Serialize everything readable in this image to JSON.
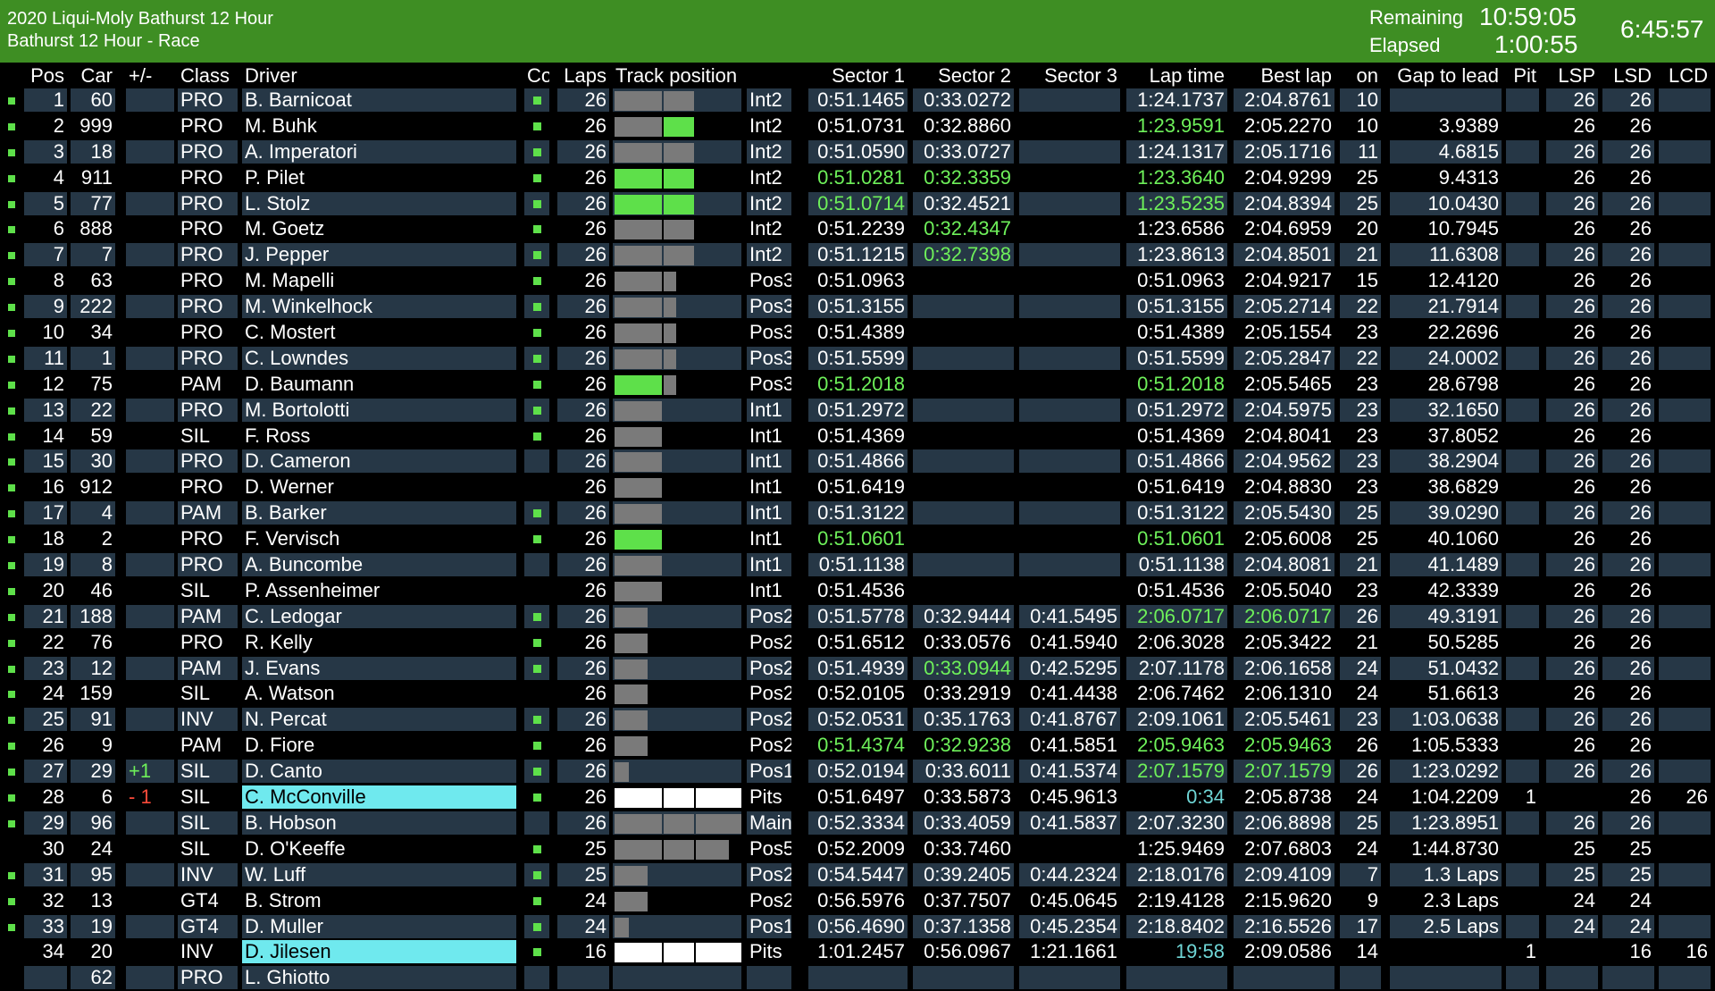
{
  "header": {
    "event": "2020 Liqui-Moly Bathurst 12 Hour",
    "session": "Bathurst 12 Hour - Race",
    "remaining_label": "Remaining",
    "remaining": "10:59:05",
    "elapsed_label": "Elapsed",
    "elapsed": "1:00:55",
    "clock": "6:45:57"
  },
  "columns": [
    "Pos",
    "Car",
    "+/-",
    "Class",
    "Driver",
    "Co",
    "Laps",
    "Track position",
    "",
    "Sector 1",
    "Sector 2",
    "Sector 3",
    "Lap time",
    "Best lap",
    "on",
    "Gap to lead",
    "Pit",
    "LSP",
    "LSD",
    "LCD"
  ],
  "colors": {
    "green": "#5ee04a",
    "header_bg": "#3e8e23",
    "row_bg": "#263746",
    "highlight": "#6fe9ee"
  },
  "rows": [
    {
      "ind": 1,
      "pos": "1",
      "car": "60",
      "pm": "",
      "cls": "PRO",
      "drv": "B. Barnicoat",
      "co": 1,
      "laps": "26",
      "tp": [
        1,
        1,
        0
      ],
      "tpg": [
        0,
        0,
        0
      ],
      "loc": "Int2",
      "s1": "0:51.1465",
      "s2": "0:33.0272",
      "s3": "",
      "lt": "1:24.1737",
      "bl": "2:04.8761",
      "on": "10",
      "gap": "",
      "pit": "",
      "lsp": "26",
      "lsd": "26",
      "lcd": "",
      "g": []
    },
    {
      "ind": 1,
      "pos": "2",
      "car": "999",
      "pm": "",
      "cls": "PRO",
      "drv": "M. Buhk",
      "co": 1,
      "laps": "26",
      "tp": [
        1,
        1,
        0
      ],
      "tpg": [
        0,
        1,
        0
      ],
      "loc": "Int2",
      "s1": "0:51.0731",
      "s2": "0:32.8860",
      "s3": "",
      "lt": "1:23.9591",
      "bl": "2:05.2270",
      "on": "10",
      "gap": "3.9389",
      "pit": "",
      "lsp": "26",
      "lsd": "26",
      "lcd": "",
      "g": [
        "lt"
      ]
    },
    {
      "ind": 1,
      "pos": "3",
      "car": "18",
      "pm": "",
      "cls": "PRO",
      "drv": "A. Imperatori",
      "co": 1,
      "laps": "26",
      "tp": [
        1,
        1,
        0
      ],
      "tpg": [
        0,
        0,
        0
      ],
      "loc": "Int2",
      "s1": "0:51.0590",
      "s2": "0:33.0727",
      "s3": "",
      "lt": "1:24.1317",
      "bl": "2:05.1716",
      "on": "11",
      "gap": "4.6815",
      "pit": "",
      "lsp": "26",
      "lsd": "26",
      "lcd": "",
      "g": []
    },
    {
      "ind": 1,
      "pos": "4",
      "car": "911",
      "pm": "",
      "cls": "PRO",
      "drv": "P. Pilet",
      "co": 1,
      "laps": "26",
      "tp": [
        1,
        1,
        0
      ],
      "tpg": [
        1,
        1,
        0
      ],
      "loc": "Int2",
      "s1": "0:51.0281",
      "s2": "0:32.3359",
      "s3": "",
      "lt": "1:23.3640",
      "bl": "2:04.9299",
      "on": "25",
      "gap": "9.4313",
      "pit": "",
      "lsp": "26",
      "lsd": "26",
      "lcd": "",
      "g": [
        "s1",
        "s2",
        "lt"
      ]
    },
    {
      "ind": 1,
      "pos": "5",
      "car": "77",
      "pm": "",
      "cls": "PRO",
      "drv": "L. Stolz",
      "co": 1,
      "laps": "26",
      "tp": [
        1,
        1,
        0
      ],
      "tpg": [
        1,
        1,
        0
      ],
      "loc": "Int2",
      "s1": "0:51.0714",
      "s2": "0:32.4521",
      "s3": "",
      "lt": "1:23.5235",
      "bl": "2:04.8394",
      "on": "25",
      "gap": "10.0430",
      "pit": "",
      "lsp": "26",
      "lsd": "26",
      "lcd": "",
      "g": [
        "s1",
        "lt"
      ]
    },
    {
      "ind": 1,
      "pos": "6",
      "car": "888",
      "pm": "",
      "cls": "PRO",
      "drv": "M. Goetz",
      "co": 1,
      "laps": "26",
      "tp": [
        1,
        1,
        0
      ],
      "tpg": [
        0,
        0,
        0
      ],
      "loc": "Int2",
      "s1": "0:51.2239",
      "s2": "0:32.4347",
      "s3": "",
      "lt": "1:23.6586",
      "bl": "2:04.6959",
      "on": "20",
      "gap": "10.7945",
      "pit": "",
      "lsp": "26",
      "lsd": "26",
      "lcd": "",
      "g": [
        "s2"
      ]
    },
    {
      "ind": 1,
      "pos": "7",
      "car": "7",
      "pm": "",
      "cls": "PRO",
      "drv": "J. Pepper",
      "co": 1,
      "laps": "26",
      "tp": [
        1,
        1,
        0
      ],
      "tpg": [
        0,
        0,
        0
      ],
      "loc": "Int2",
      "s1": "0:51.1215",
      "s2": "0:32.7398",
      "s3": "",
      "lt": "1:23.8613",
      "bl": "2:04.8501",
      "on": "21",
      "gap": "11.6308",
      "pit": "",
      "lsp": "26",
      "lsd": "26",
      "lcd": "",
      "g": [
        "s2"
      ]
    },
    {
      "ind": 1,
      "pos": "8",
      "car": "63",
      "pm": "",
      "cls": "PRO",
      "drv": "M. Mapelli",
      "co": 1,
      "laps": "26",
      "tp": [
        1,
        0.4,
        0
      ],
      "tpg": [
        0,
        0,
        0
      ],
      "loc": "Pos3",
      "s1": "0:51.0963",
      "s2": "",
      "s3": "",
      "lt": "0:51.0963",
      "bl": "2:04.9217",
      "on": "15",
      "gap": "12.4120",
      "pit": "",
      "lsp": "26",
      "lsd": "26",
      "lcd": "",
      "g": []
    },
    {
      "ind": 1,
      "pos": "9",
      "car": "222",
      "pm": "",
      "cls": "PRO",
      "drv": "M. Winkelhock",
      "co": 1,
      "laps": "26",
      "tp": [
        1,
        0.4,
        0
      ],
      "tpg": [
        0,
        0,
        0
      ],
      "loc": "Pos3",
      "s1": "0:51.3155",
      "s2": "",
      "s3": "",
      "lt": "0:51.3155",
      "bl": "2:05.2714",
      "on": "22",
      "gap": "21.7914",
      "pit": "",
      "lsp": "26",
      "lsd": "26",
      "lcd": "",
      "g": []
    },
    {
      "ind": 1,
      "pos": "10",
      "car": "34",
      "pm": "",
      "cls": "PRO",
      "drv": "C. Mostert",
      "co": 1,
      "laps": "26",
      "tp": [
        1,
        0.4,
        0
      ],
      "tpg": [
        0,
        0,
        0
      ],
      "loc": "Pos3",
      "s1": "0:51.4389",
      "s2": "",
      "s3": "",
      "lt": "0:51.4389",
      "bl": "2:05.1554",
      "on": "23",
      "gap": "22.2696",
      "pit": "",
      "lsp": "26",
      "lsd": "26",
      "lcd": "",
      "g": []
    },
    {
      "ind": 1,
      "pos": "11",
      "car": "1",
      "pm": "",
      "cls": "PRO",
      "drv": "C. Lowndes",
      "co": 1,
      "laps": "26",
      "tp": [
        1,
        0.4,
        0
      ],
      "tpg": [
        0,
        0,
        0
      ],
      "loc": "Pos3",
      "s1": "0:51.5599",
      "s2": "",
      "s3": "",
      "lt": "0:51.5599",
      "bl": "2:05.2847",
      "on": "22",
      "gap": "24.0002",
      "pit": "",
      "lsp": "26",
      "lsd": "26",
      "lcd": "",
      "g": []
    },
    {
      "ind": 1,
      "pos": "12",
      "car": "75",
      "pm": "",
      "cls": "PAM",
      "drv": "D. Baumann",
      "co": 1,
      "laps": "26",
      "tp": [
        1,
        0.4,
        0
      ],
      "tpg": [
        1,
        0,
        0
      ],
      "loc": "Pos3",
      "s1": "0:51.2018",
      "s2": "",
      "s3": "",
      "lt": "0:51.2018",
      "bl": "2:05.5465",
      "on": "23",
      "gap": "28.6798",
      "pit": "",
      "lsp": "26",
      "lsd": "26",
      "lcd": "",
      "g": [
        "s1",
        "lt"
      ]
    },
    {
      "ind": 1,
      "pos": "13",
      "car": "22",
      "pm": "",
      "cls": "PRO",
      "drv": "M. Bortolotti",
      "co": 1,
      "laps": "26",
      "tp": [
        1,
        0,
        0
      ],
      "tpg": [
        0,
        0,
        0
      ],
      "loc": "Int1",
      "s1": "0:51.2972",
      "s2": "",
      "s3": "",
      "lt": "0:51.2972",
      "bl": "2:04.5975",
      "on": "23",
      "gap": "32.1650",
      "pit": "",
      "lsp": "26",
      "lsd": "26",
      "lcd": "",
      "g": []
    },
    {
      "ind": 1,
      "pos": "14",
      "car": "59",
      "pm": "",
      "cls": "SIL",
      "drv": "F. Ross",
      "co": 1,
      "laps": "26",
      "tp": [
        1,
        0,
        0
      ],
      "tpg": [
        0,
        0,
        0
      ],
      "loc": "Int1",
      "s1": "0:51.4369",
      "s2": "",
      "s3": "",
      "lt": "0:51.4369",
      "bl": "2:04.8041",
      "on": "23",
      "gap": "37.8052",
      "pit": "",
      "lsp": "26",
      "lsd": "26",
      "lcd": "",
      "g": []
    },
    {
      "ind": 1,
      "pos": "15",
      "car": "30",
      "pm": "",
      "cls": "PRO",
      "drv": "D. Cameron",
      "co": 0,
      "laps": "26",
      "tp": [
        1,
        0,
        0
      ],
      "tpg": [
        0,
        0,
        0
      ],
      "loc": "Int1",
      "s1": "0:51.4866",
      "s2": "",
      "s3": "",
      "lt": "0:51.4866",
      "bl": "2:04.9562",
      "on": "23",
      "gap": "38.2904",
      "pit": "",
      "lsp": "26",
      "lsd": "26",
      "lcd": "",
      "g": []
    },
    {
      "ind": 1,
      "pos": "16",
      "car": "912",
      "pm": "",
      "cls": "PRO",
      "drv": "D. Werner",
      "co": 0,
      "laps": "26",
      "tp": [
        1,
        0,
        0
      ],
      "tpg": [
        0,
        0,
        0
      ],
      "loc": "Int1",
      "s1": "0:51.6419",
      "s2": "",
      "s3": "",
      "lt": "0:51.6419",
      "bl": "2:04.8830",
      "on": "23",
      "gap": "38.6829",
      "pit": "",
      "lsp": "26",
      "lsd": "26",
      "lcd": "",
      "g": []
    },
    {
      "ind": 1,
      "pos": "17",
      "car": "4",
      "pm": "",
      "cls": "PAM",
      "drv": "B. Barker",
      "co": 1,
      "laps": "26",
      "tp": [
        1,
        0,
        0
      ],
      "tpg": [
        0,
        0,
        0
      ],
      "loc": "Int1",
      "s1": "0:51.3122",
      "s2": "",
      "s3": "",
      "lt": "0:51.3122",
      "bl": "2:05.5430",
      "on": "25",
      "gap": "39.0290",
      "pit": "",
      "lsp": "26",
      "lsd": "26",
      "lcd": "",
      "g": []
    },
    {
      "ind": 1,
      "pos": "18",
      "car": "2",
      "pm": "",
      "cls": "PRO",
      "drv": "F. Vervisch",
      "co": 1,
      "laps": "26",
      "tp": [
        1,
        0,
        0
      ],
      "tpg": [
        1,
        0,
        0
      ],
      "loc": "Int1",
      "s1": "0:51.0601",
      "s2": "",
      "s3": "",
      "lt": "0:51.0601",
      "bl": "2:05.6008",
      "on": "25",
      "gap": "40.1060",
      "pit": "",
      "lsp": "26",
      "lsd": "26",
      "lcd": "",
      "g": [
        "s1",
        "lt"
      ]
    },
    {
      "ind": 1,
      "pos": "19",
      "car": "8",
      "pm": "",
      "cls": "PRO",
      "drv": "A. Buncombe",
      "co": 0,
      "laps": "26",
      "tp": [
        1,
        0,
        0
      ],
      "tpg": [
        0,
        0,
        0
      ],
      "loc": "Int1",
      "s1": "0:51.1138",
      "s2": "",
      "s3": "",
      "lt": "0:51.1138",
      "bl": "2:04.8081",
      "on": "21",
      "gap": "41.1489",
      "pit": "",
      "lsp": "26",
      "lsd": "26",
      "lcd": "",
      "g": []
    },
    {
      "ind": 1,
      "pos": "20",
      "car": "46",
      "pm": "",
      "cls": "SIL",
      "drv": "P. Assenheimer",
      "co": 0,
      "laps": "26",
      "tp": [
        1,
        0,
        0
      ],
      "tpg": [
        0,
        0,
        0
      ],
      "loc": "Int1",
      "s1": "0:51.4536",
      "s2": "",
      "s3": "",
      "lt": "0:51.4536",
      "bl": "2:05.5040",
      "on": "23",
      "gap": "42.3339",
      "pit": "",
      "lsp": "26",
      "lsd": "26",
      "lcd": "",
      "g": []
    },
    {
      "ind": 1,
      "pos": "21",
      "car": "188",
      "pm": "",
      "cls": "PAM",
      "drv": "C. Ledogar",
      "co": 1,
      "laps": "26",
      "tp": [
        0.7,
        0,
        0
      ],
      "tpg": [
        0,
        0,
        0
      ],
      "loc": "Pos2",
      "s1": "0:51.5778",
      "s2": "0:32.9444",
      "s3": "0:41.5495",
      "lt": "2:06.0717",
      "bl": "2:06.0717",
      "on": "26",
      "gap": "49.3191",
      "pit": "",
      "lsp": "26",
      "lsd": "26",
      "lcd": "",
      "g": [
        "lt",
        "bl"
      ]
    },
    {
      "ind": 1,
      "pos": "22",
      "car": "76",
      "pm": "",
      "cls": "PRO",
      "drv": "R. Kelly",
      "co": 1,
      "laps": "26",
      "tp": [
        0.7,
        0,
        0
      ],
      "tpg": [
        0,
        0,
        0
      ],
      "loc": "Pos2",
      "s1": "0:51.6512",
      "s2": "0:33.0576",
      "s3": "0:41.5940",
      "lt": "2:06.3028",
      "bl": "2:05.3422",
      "on": "21",
      "gap": "50.5285",
      "pit": "",
      "lsp": "26",
      "lsd": "26",
      "lcd": "",
      "g": []
    },
    {
      "ind": 1,
      "pos": "23",
      "car": "12",
      "pm": "",
      "cls": "PAM",
      "drv": "J. Evans",
      "co": 1,
      "laps": "26",
      "tp": [
        0.7,
        0,
        0
      ],
      "tpg": [
        0,
        0,
        0
      ],
      "loc": "Pos2",
      "s1": "0:51.4939",
      "s2": "0:33.0944",
      "s3": "0:42.5295",
      "lt": "2:07.1178",
      "bl": "2:06.1658",
      "on": "24",
      "gap": "51.0432",
      "pit": "",
      "lsp": "26",
      "lsd": "26",
      "lcd": "",
      "g": [
        "s2"
      ]
    },
    {
      "ind": 1,
      "pos": "24",
      "car": "159",
      "pm": "",
      "cls": "SIL",
      "drv": "A. Watson",
      "co": 0,
      "laps": "26",
      "tp": [
        0.7,
        0,
        0
      ],
      "tpg": [
        0,
        0,
        0
      ],
      "loc": "Pos2",
      "s1": "0:52.0105",
      "s2": "0:33.2919",
      "s3": "0:41.4438",
      "lt": "2:06.7462",
      "bl": "2:06.1310",
      "on": "24",
      "gap": "51.6613",
      "pit": "",
      "lsp": "26",
      "lsd": "26",
      "lcd": "",
      "g": []
    },
    {
      "ind": 1,
      "pos": "25",
      "car": "91",
      "pm": "",
      "cls": "INV",
      "drv": "N. Percat",
      "co": 1,
      "laps": "26",
      "tp": [
        0.7,
        0,
        0
      ],
      "tpg": [
        0,
        0,
        0
      ],
      "loc": "Pos2",
      "s1": "0:52.0531",
      "s2": "0:35.1763",
      "s3": "0:41.8767",
      "lt": "2:09.1061",
      "bl": "2:05.5461",
      "on": "23",
      "gap": "1:03.0638",
      "pit": "",
      "lsp": "26",
      "lsd": "26",
      "lcd": "",
      "g": []
    },
    {
      "ind": 1,
      "pos": "26",
      "car": "9",
      "pm": "",
      "cls": "PAM",
      "drv": "D. Fiore",
      "co": 1,
      "laps": "26",
      "tp": [
        0.7,
        0,
        0
      ],
      "tpg": [
        0,
        0,
        0
      ],
      "loc": "Pos2",
      "s1": "0:51.4374",
      "s2": "0:32.9238",
      "s3": "0:41.5851",
      "lt": "2:05.9463",
      "bl": "2:05.9463",
      "on": "26",
      "gap": "1:05.5333",
      "pit": "",
      "lsp": "26",
      "lsd": "26",
      "lcd": "",
      "g": [
        "s1",
        "s2",
        "lt",
        "bl"
      ]
    },
    {
      "ind": 1,
      "pos": "27",
      "car": "29",
      "pm": "+1",
      "cls": "SIL",
      "drv": "D. Canto",
      "co": 1,
      "laps": "26",
      "tp": [
        0.3,
        0,
        0
      ],
      "tpg": [
        0,
        0,
        0
      ],
      "loc": "Pos1",
      "s1": "0:52.0194",
      "s2": "0:33.6011",
      "s3": "0:41.5374",
      "lt": "2:07.1579",
      "bl": "2:07.1579",
      "on": "26",
      "gap": "1:23.0292",
      "pit": "",
      "lsp": "26",
      "lsd": "26",
      "lcd": "",
      "g": [
        "lt",
        "bl"
      ]
    },
    {
      "ind": 1,
      "pos": "28",
      "car": "6",
      "pm": "- 1",
      "cls": "SIL",
      "drv": "C. McConville",
      "co": 1,
      "laps": "26",
      "tp": [
        1,
        1,
        1
      ],
      "tpg": [
        2,
        2,
        2
      ],
      "loc": "Pits",
      "s1": "0:51.6497",
      "s2": "0:33.5873",
      "s3": "0:45.9613",
      "lt": "0:34",
      "bl": "2:05.8738",
      "on": "24",
      "gap": "1:04.2209",
      "pit": "1",
      "lsp": "",
      "lsd": "26",
      "lcd": "26",
      "g": [
        "ltc"
      ],
      "hl": 1
    },
    {
      "ind": 1,
      "pos": "29",
      "car": "96",
      "pm": "",
      "cls": "SIL",
      "drv": "B. Hobson",
      "co": 0,
      "laps": "26",
      "tp": [
        1,
        1,
        1
      ],
      "tpg": [
        0,
        0,
        0
      ],
      "loc": "Main",
      "s1": "0:52.3334",
      "s2": "0:33.4059",
      "s3": "0:41.5837",
      "lt": "2:07.3230",
      "bl": "2:06.8898",
      "on": "25",
      "gap": "1:23.8951",
      "pit": "",
      "lsp": "26",
      "lsd": "26",
      "lcd": "",
      "g": []
    },
    {
      "ind": 0,
      "pos": "30",
      "car": "24",
      "pm": "",
      "cls": "SIL",
      "drv": "D. O'Keeffe",
      "co": 1,
      "laps": "25",
      "tp": [
        1,
        1,
        0.7
      ],
      "tpg": [
        0,
        0,
        0
      ],
      "loc": "Pos5",
      "s1": "0:52.2009",
      "s2": "0:33.7460",
      "s3": "",
      "lt": "1:25.9469",
      "bl": "2:07.6803",
      "on": "24",
      "gap": "1:44.8730",
      "pit": "",
      "lsp": "25",
      "lsd": "25",
      "lcd": "",
      "g": []
    },
    {
      "ind": 1,
      "pos": "31",
      "car": "95",
      "pm": "",
      "cls": "INV",
      "drv": "W. Luff",
      "co": 1,
      "laps": "25",
      "tp": [
        0.7,
        0,
        0
      ],
      "tpg": [
        0,
        0,
        0
      ],
      "loc": "Pos2",
      "s1": "0:54.5447",
      "s2": "0:39.2405",
      "s3": "0:44.2324",
      "lt": "2:18.0176",
      "bl": "2:09.4109",
      "on": "7",
      "gap": "1.3 Laps",
      "pit": "",
      "lsp": "25",
      "lsd": "25",
      "lcd": "",
      "g": []
    },
    {
      "ind": 1,
      "pos": "32",
      "car": "13",
      "pm": "",
      "cls": "GT4",
      "drv": "B. Strom",
      "co": 1,
      "laps": "24",
      "tp": [
        0.7,
        0,
        0
      ],
      "tpg": [
        0,
        0,
        0
      ],
      "loc": "Pos2",
      "s1": "0:56.5976",
      "s2": "0:37.7507",
      "s3": "0:45.0645",
      "lt": "2:19.4128",
      "bl": "2:15.9620",
      "on": "9",
      "gap": "2.3 Laps",
      "pit": "",
      "lsp": "24",
      "lsd": "24",
      "lcd": "",
      "g": []
    },
    {
      "ind": 1,
      "pos": "33",
      "car": "19",
      "pm": "",
      "cls": "GT4",
      "drv": "D. Muller",
      "co": 1,
      "laps": "24",
      "tp": [
        0.3,
        0,
        0
      ],
      "tpg": [
        0,
        0,
        0
      ],
      "loc": "Pos1",
      "s1": "0:56.4690",
      "s2": "0:37.1358",
      "s3": "0:45.2354",
      "lt": "2:18.8402",
      "bl": "2:16.5526",
      "on": "17",
      "gap": "2.5 Laps",
      "pit": "",
      "lsp": "24",
      "lsd": "24",
      "lcd": "",
      "g": []
    },
    {
      "ind": 0,
      "pos": "34",
      "car": "20",
      "pm": "",
      "cls": "INV",
      "drv": "D. Jilesen",
      "co": 1,
      "laps": "16",
      "tp": [
        1,
        1,
        1
      ],
      "tpg": [
        2,
        2,
        2
      ],
      "loc": "Pits",
      "s1": "1:01.2457",
      "s2": "0:56.0967",
      "s3": "1:21.1661",
      "lt": "19:58",
      "bl": "2:09.0586",
      "on": "14",
      "gap": "",
      "pit": "1",
      "lsp": "",
      "lsd": "16",
      "lcd": "16",
      "g": [
        "ltc"
      ],
      "hl": 1
    },
    {
      "ind": 0,
      "pos": "",
      "car": "62",
      "pm": "",
      "cls": "PRO",
      "drv": "L. Ghiotto",
      "co": 0,
      "laps": "",
      "tp": [
        0,
        0,
        0
      ],
      "tpg": [
        0,
        0,
        0
      ],
      "loc": "",
      "s1": "",
      "s2": "",
      "s3": "",
      "lt": "",
      "bl": "",
      "on": "",
      "gap": "",
      "pit": "",
      "lsp": "",
      "lsd": "",
      "lcd": "",
      "g": []
    }
  ]
}
